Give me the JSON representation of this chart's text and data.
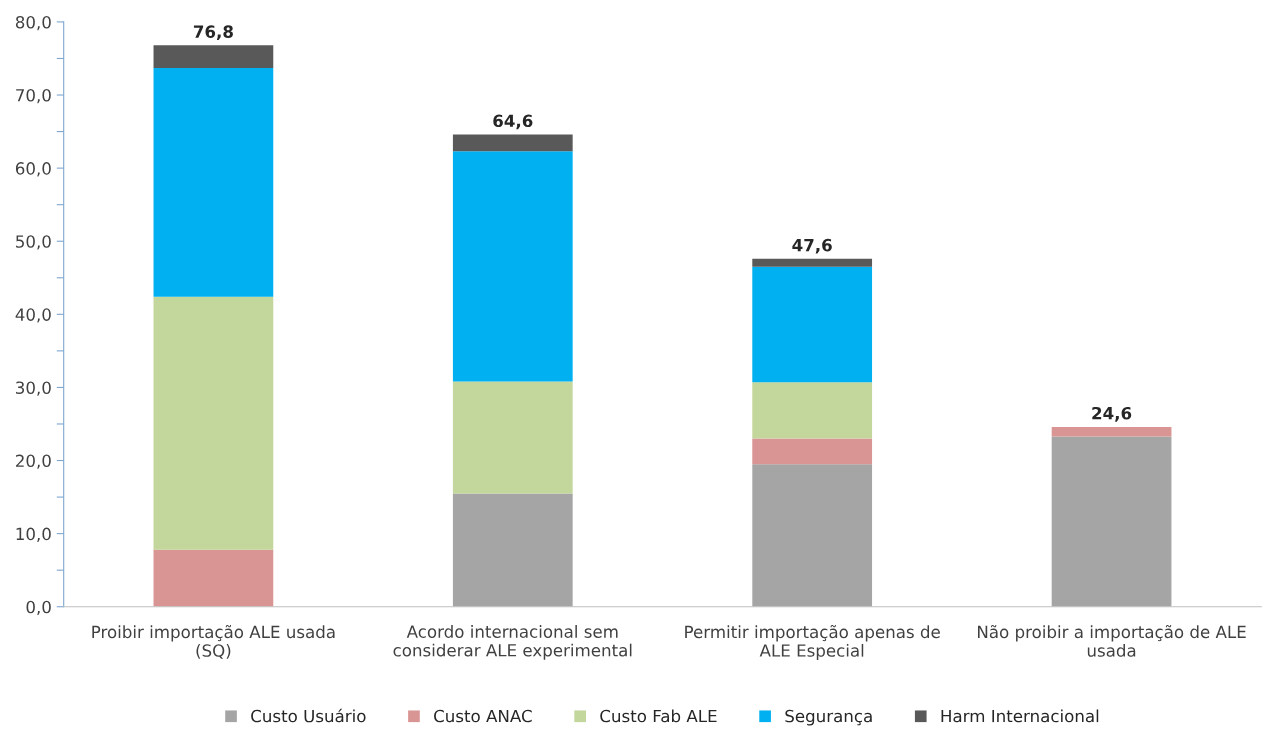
{
  "chart_data": {
    "type": "bar",
    "stacked": true,
    "categories": [
      "Proibir importação ALE usada (SQ)",
      "Acordo internacional sem considerar ALE experimental",
      "Permitir importação apenas de ALE Especial",
      "Não proibir a importação de ALE usada"
    ],
    "series": [
      {
        "name": "Custo Usuário",
        "color": "#a5a5a5",
        "values": [
          0,
          15.5,
          19.5,
          23.3
        ]
      },
      {
        "name": "Custo ANAC",
        "color": "#d99594",
        "values": [
          7.8,
          0,
          3.5,
          1.3
        ]
      },
      {
        "name": "Custo Fab ALE",
        "color": "#c3d69b",
        "values": [
          34.6,
          15.3,
          7.7,
          0
        ]
      },
      {
        "name": "Segurança",
        "color": "#00b0f0",
        "values": [
          31.3,
          31.5,
          15.8,
          0
        ]
      },
      {
        "name": "Harm Internacional",
        "color": "#595959",
        "values": [
          3.1,
          2.3,
          1.1,
          0
        ]
      }
    ],
    "totals": [
      "76,8",
      "64,6",
      "47,6",
      "24,6"
    ],
    "ylim": [
      0,
      80
    ],
    "yticks": [
      {
        "value": 0,
        "label": "0,0"
      },
      {
        "value": 5,
        "label": null
      },
      {
        "value": 10,
        "label": "10,0"
      },
      {
        "value": 15,
        "label": null
      },
      {
        "value": 20,
        "label": "20,0"
      },
      {
        "value": 25,
        "label": null
      },
      {
        "value": 30,
        "label": "30,0"
      },
      {
        "value": 35,
        "label": null
      },
      {
        "value": 40,
        "label": "40,0"
      },
      {
        "value": 45,
        "label": null
      },
      {
        "value": 50,
        "label": "50,0"
      },
      {
        "value": 55,
        "label": null
      },
      {
        "value": 60,
        "label": "60,0"
      },
      {
        "value": 65,
        "label": null
      },
      {
        "value": 70,
        "label": "70,0"
      },
      {
        "value": 75,
        "label": null
      },
      {
        "value": 80,
        "label": "80,0"
      }
    ],
    "grid": false,
    "legend": "bottom"
  }
}
